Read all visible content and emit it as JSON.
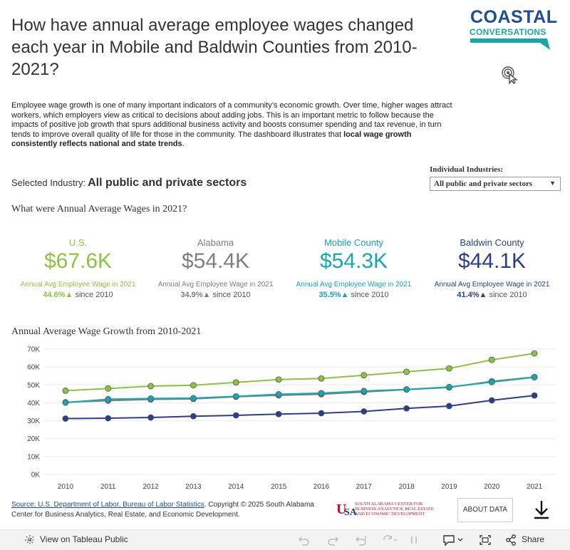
{
  "title": "How have annual average employee wages changed each year in Mobile and Baldwin Counties from 2010-2021?",
  "logo": {
    "line1": "COASTAL",
    "line2": "CONVERSATIONS"
  },
  "intro": {
    "text": "Employee wage growth is one of many important indicators of a community’s economic growth. Over time, higher wages attract workers, which employers view as critical to decisions about adding jobs. This is an important metric to follow because the impacts of positive job growth that spurs additional business activity and boosts consumer spending and tax revenue, in turn tends to improve overall quality of life for those in the community. The dashboard illustrates that ",
    "bold": "local wage growth consistently reflects national and state trends",
    "end": "."
  },
  "selected": {
    "label": "Selected Industry:",
    "value": "All public and private sectors"
  },
  "filter": {
    "label": "Individual Industries:",
    "value": "All public and private sectors"
  },
  "kpi_title": "What were Annual Average Wages in 2021?",
  "kpis": [
    {
      "name": "U.S.",
      "value": "$67.6K",
      "sub": "Annual Avg Employee Wage in 2021",
      "pct": "44.6%▲",
      "since": " since 2010",
      "color": "#8cc43f"
    },
    {
      "name": "Alabama",
      "value": "$54.4K",
      "sub": "Annual Avg Employee Wage in 2021",
      "pct": "34.9%▲",
      "since": " since 2010",
      "color": "#7f7f7f"
    },
    {
      "name": "Mobile County",
      "value": "$54.3K",
      "sub": "Annual Avg Employee Wage in 2021",
      "pct": "35.5%▲",
      "since": " since 2010",
      "color": "#15a7b3"
    },
    {
      "name": "Baldwin County",
      "value": "$44.1K",
      "sub": "Annual Avg Employee Wage in 2021",
      "pct": "41.4%▲",
      "since": " since 2010",
      "color": "#2a3e8b"
    }
  ],
  "chart_title": "Annual Average Wage Growth from 2010-2021",
  "chart_data": {
    "type": "line",
    "title": "Annual Average Wage Growth from 2010-2021",
    "x": [
      "2010",
      "2011",
      "2012",
      "2013",
      "2014",
      "2015",
      "2016",
      "2017",
      "2018",
      "2019",
      "2020",
      "2021"
    ],
    "yticks": [
      "0K",
      "10K",
      "20K",
      "30K",
      "40K",
      "50K",
      "60K",
      "70K"
    ],
    "ylim": [
      0,
      70000
    ],
    "series": [
      {
        "name": "U.S.",
        "color": "#8cc43f",
        "values": [
          46.8,
          48.0,
          49.3,
          49.8,
          51.4,
          53.0,
          53.6,
          55.4,
          57.3,
          59.2,
          64.0,
          67.6
        ]
      },
      {
        "name": "Alabama",
        "color": "#7f7f7f",
        "values": [
          40.3,
          41.2,
          41.9,
          42.2,
          43.4,
          44.2,
          44.8,
          46.1,
          47.4,
          48.6,
          52.0,
          54.4
        ]
      },
      {
        "name": "Mobile County",
        "color": "#15a7b3",
        "values": [
          40.1,
          42.0,
          42.4,
          42.6,
          43.6,
          44.8,
          45.4,
          46.6,
          47.5,
          48.8,
          51.6,
          54.3
        ]
      },
      {
        "name": "Baldwin County",
        "color": "#2a3e8b",
        "values": [
          31.2,
          31.4,
          31.8,
          32.5,
          33.0,
          33.7,
          34.2,
          35.2,
          36.9,
          38.2,
          41.4,
          44.1
        ]
      }
    ]
  },
  "footer": {
    "source_link": "Source: U.S. Department of Labor, Bureau of Labor Statistics",
    "source_rest": ". Copyright © 2025 South Alabama Center for Business Analytics, Real Estate, and Economic Development.",
    "usa_text1": "SOUTH ALABAMA CENTER FOR",
    "usa_text2": "BUSINESS ANALYTICS, REAL ESTATE",
    "usa_text3": "AND ECONOMIC DEVELOPMENT",
    "about": "ABOUT DATA"
  },
  "toolbar": {
    "view": "View on Tableau Public",
    "share": "Share"
  }
}
